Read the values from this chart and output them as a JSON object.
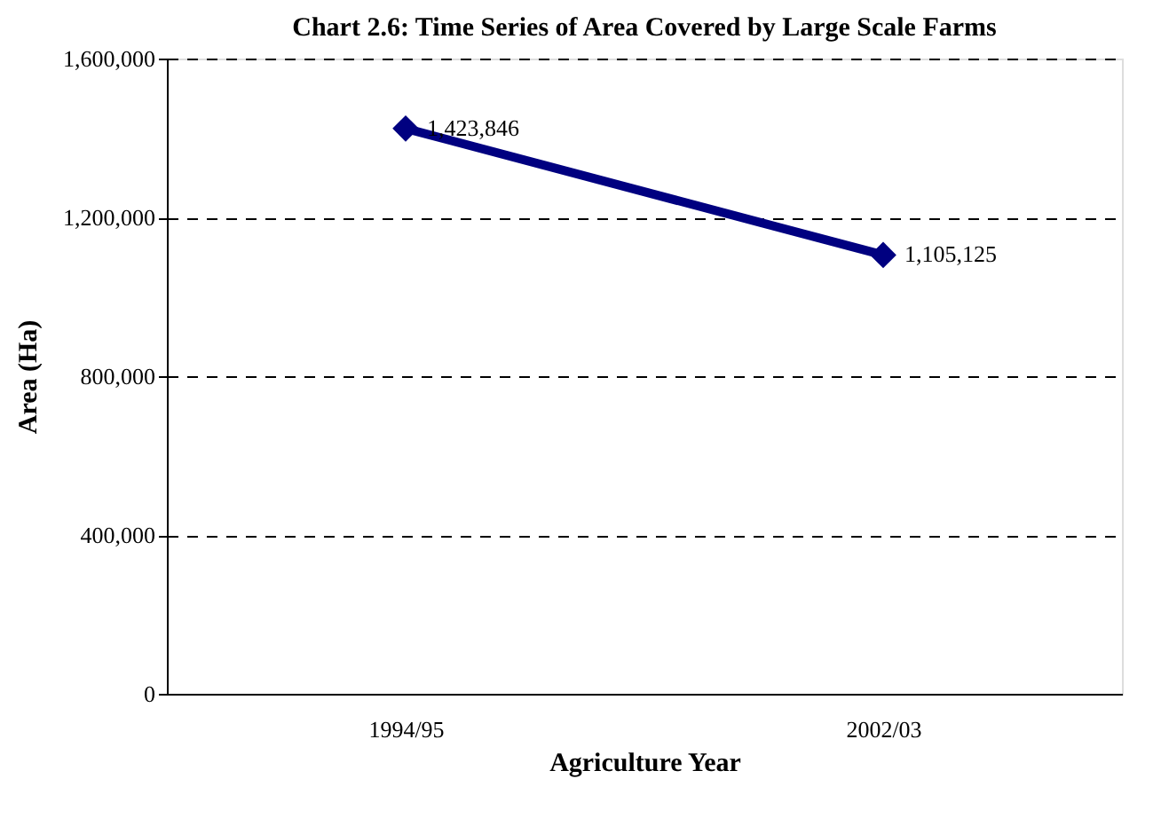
{
  "chart_data": {
    "type": "line",
    "title": "Chart 2.6: Time Series of Area Covered by Large Scale Farms",
    "xlabel": "Agriculture Year",
    "ylabel": "Area (Ha)",
    "categories": [
      "1994/95",
      "2002/03"
    ],
    "series": [
      {
        "color": "#000080",
        "values": [
          1423846,
          1105125
        ],
        "value_labels": [
          "1,423,846",
          "1,105,125"
        ]
      }
    ],
    "ylim": [
      0,
      1600000
    ],
    "yticks": [
      0,
      {
        "value": 400000,
        "label": "400,000"
      },
      {
        "value": 800000,
        "label": "800,000"
      },
      {
        "value": 1200000,
        "label": "1,200,000"
      },
      {
        "value": 1600000,
        "label": "1,600,000"
      }
    ],
    "grid": "y",
    "marker": "diamond",
    "line_style": "solid",
    "legend": false
  }
}
